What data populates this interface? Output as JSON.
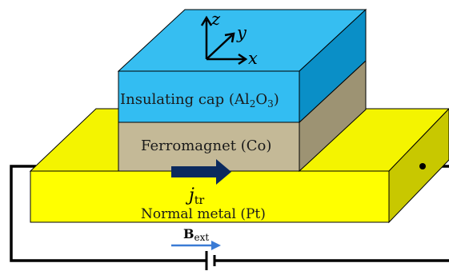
{
  "layers": {
    "cap": {
      "label_main": "Insulating cap (Al",
      "label_sub": "2",
      "label_mid": "O",
      "label_sub2": "3",
      "label_end": ")"
    },
    "ferromagnet": {
      "label": "Ferromagnet (Co)"
    },
    "normal_metal": {
      "label": "Normal metal (Pt)"
    }
  },
  "axes": {
    "x": "x",
    "y": "y",
    "z": "z"
  },
  "current": {
    "symbol": "j",
    "subscript": "tr"
  },
  "field": {
    "symbol": "B",
    "subscript": "ext"
  },
  "colors": {
    "cap_front": "#33bdf2",
    "cap_top": "#36bef1",
    "cap_side": "#0a8fc7",
    "fm_front": "#c4b997",
    "fm_side": "#9d9373",
    "nm_front": "#ffff00",
    "nm_top": "#f5f500",
    "nm_side": "#c9c900",
    "current_arrow": "#0b2a5e",
    "field_arrow": "#3a7bd5"
  }
}
